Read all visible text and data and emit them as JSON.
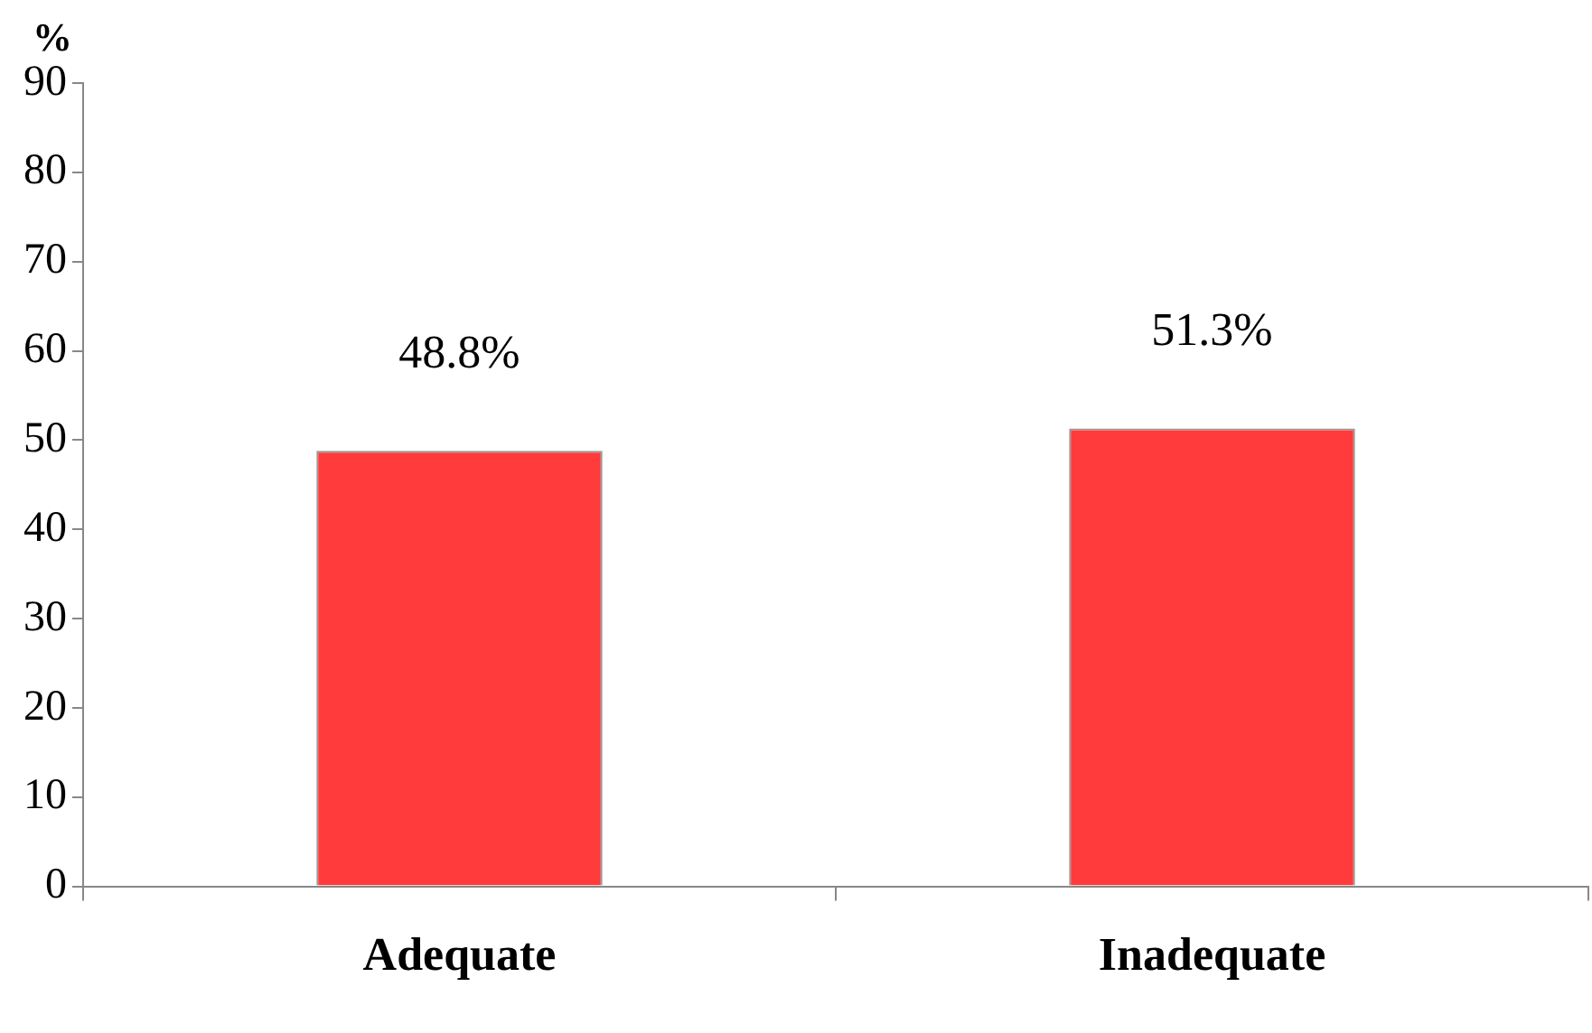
{
  "chart_data": {
    "type": "bar",
    "ylabel": "%",
    "categories": [
      "Adequate",
      "Inadequate"
    ],
    "values": [
      48.8,
      51.3
    ],
    "value_labels": [
      "48.8%",
      "51.3%"
    ],
    "color": "#ff3b3b",
    "ylim": [
      0,
      90
    ],
    "yticks": [
      0,
      10,
      20,
      30,
      40,
      50,
      60,
      70,
      80,
      90
    ],
    "grid": false,
    "legend": false
  }
}
